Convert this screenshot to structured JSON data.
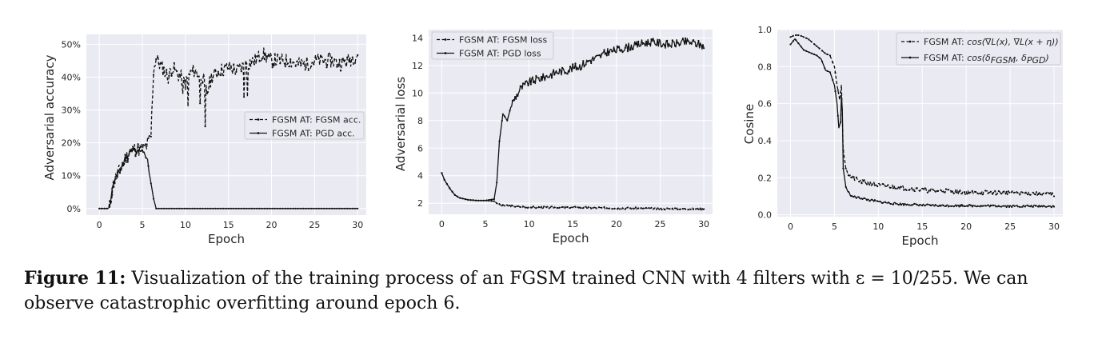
{
  "chart_data": [
    {
      "type": "line",
      "xlabel": "Epoch",
      "ylabel": "Adversarial accuracy",
      "xlim": [
        -1.5,
        31
      ],
      "ylim": [
        -0.02,
        0.53
      ],
      "xticks": [
        0,
        5,
        10,
        15,
        20,
        25,
        30
      ],
      "yticks": [
        0,
        0.1,
        0.2,
        0.3,
        0.4,
        0.5
      ],
      "ytick_labels": [
        "0%",
        "10%",
        "20%",
        "30%",
        "40%",
        "50%"
      ],
      "legend_position": "center-right",
      "series": [
        {
          "name": "FGSM AT: FGSM acc.",
          "style": "dashed",
          "keypoints": [
            [
              0,
              0
            ],
            [
              1,
              0
            ],
            [
              1.2,
              0.005
            ],
            [
              1.6,
              0.07
            ],
            [
              2,
              0.1
            ],
            [
              2.5,
              0.12
            ],
            [
              3,
              0.15
            ],
            [
              3.5,
              0.17
            ],
            [
              4,
              0.18
            ],
            [
              4.5,
              0.18
            ],
            [
              5,
              0.18
            ],
            [
              5.5,
              0.19
            ],
            [
              6,
              0.22
            ],
            [
              6.3,
              0.42
            ],
            [
              6.6,
              0.46
            ],
            [
              7,
              0.44
            ],
            [
              7.5,
              0.42
            ],
            [
              8,
              0.4
            ],
            [
              8.5,
              0.43
            ],
            [
              9,
              0.41
            ],
            [
              9.5,
              0.4
            ],
            [
              10,
              0.38
            ],
            [
              10.5,
              0.41
            ],
            [
              11,
              0.42
            ],
            [
              12,
              0.4
            ],
            [
              12.5,
              0.35
            ],
            [
              13,
              0.4
            ],
            [
              14,
              0.42
            ],
            [
              15,
              0.43
            ],
            [
              16,
              0.42
            ],
            [
              17,
              0.44
            ],
            [
              18,
              0.45
            ],
            [
              19,
              0.47
            ],
            [
              20,
              0.45
            ],
            [
              21,
              0.45
            ],
            [
              22,
              0.45
            ],
            [
              23,
              0.44
            ],
            [
              24,
              0.44
            ],
            [
              25,
              0.45
            ],
            [
              26,
              0.45
            ],
            [
              27,
              0.45
            ],
            [
              28,
              0.44
            ],
            [
              29,
              0.45
            ],
            [
              30,
              0.47
            ]
          ],
          "dips": [
            [
              9.7,
              0.35
            ],
            [
              10.3,
              0.31
            ],
            [
              11.7,
              0.32
            ],
            [
              12.3,
              0.25
            ],
            [
              16.8,
              0.34
            ],
            [
              17.2,
              0.34
            ]
          ],
          "noise": 0.022,
          "seed": 11
        },
        {
          "name": "FGSM AT: PGD acc.",
          "style": "solid",
          "keypoints": [
            [
              0,
              0
            ],
            [
              1,
              0
            ],
            [
              1.2,
              0.005
            ],
            [
              1.6,
              0.07
            ],
            [
              2,
              0.1
            ],
            [
              2.5,
              0.12
            ],
            [
              3,
              0.15
            ],
            [
              3.5,
              0.17
            ],
            [
              4,
              0.175
            ],
            [
              4.5,
              0.17
            ],
            [
              5,
              0.17
            ],
            [
              5.5,
              0.16
            ],
            [
              6,
              0.08
            ],
            [
              6.3,
              0.03
            ],
            [
              6.6,
              0
            ],
            [
              30,
              0
            ]
          ],
          "noise": 0.01,
          "noise_range": [
            1.5,
            6.0
          ],
          "seed": 5
        }
      ]
    },
    {
      "type": "line",
      "xlabel": "Epoch",
      "ylabel": "Adversarial loss",
      "xlim": [
        -1.5,
        31
      ],
      "ylim": [
        1.2,
        14.6
      ],
      "xticks": [
        0,
        5,
        10,
        15,
        20,
        25,
        30
      ],
      "yticks": [
        2,
        4,
        6,
        8,
        10,
        12,
        14
      ],
      "ytick_labels": [
        "2",
        "4",
        "6",
        "8",
        "10",
        "12",
        "14"
      ],
      "legend_position": "top-left",
      "series": [
        {
          "name": "FGSM AT: FGSM loss",
          "style": "dashed",
          "keypoints": [
            [
              0,
              4.2
            ],
            [
              0.3,
              3.7
            ],
            [
              0.7,
              3.3
            ],
            [
              1,
              3.0
            ],
            [
              1.5,
              2.6
            ],
            [
              2,
              2.4
            ],
            [
              3,
              2.25
            ],
            [
              4,
              2.2
            ],
            [
              5,
              2.2
            ],
            [
              6,
              2.15
            ],
            [
              6.5,
              1.9
            ],
            [
              7,
              1.85
            ],
            [
              10,
              1.7
            ],
            [
              15,
              1.7
            ],
            [
              20,
              1.65
            ],
            [
              25,
              1.6
            ],
            [
              30,
              1.6
            ]
          ],
          "noise": 0.07,
          "noise_range": [
            6.5,
            30
          ],
          "seed": 3
        },
        {
          "name": "FGSM AT: PGD loss",
          "style": "solid",
          "keypoints": [
            [
              0,
              4.2
            ],
            [
              0.3,
              3.7
            ],
            [
              0.7,
              3.3
            ],
            [
              1,
              3.0
            ],
            [
              1.5,
              2.6
            ],
            [
              2,
              2.4
            ],
            [
              3,
              2.25
            ],
            [
              4,
              2.2
            ],
            [
              5,
              2.2
            ],
            [
              6,
              2.3
            ],
            [
              6.3,
              3.5
            ],
            [
              6.6,
              6.5
            ],
            [
              7,
              8.5
            ],
            [
              7.5,
              8.0
            ],
            [
              8,
              9.2
            ],
            [
              9,
              10.3
            ],
            [
              10,
              10.8
            ],
            [
              11,
              11.0
            ],
            [
              12,
              11.2
            ],
            [
              13,
              11.5
            ],
            [
              14,
              11.6
            ],
            [
              15,
              11.8
            ],
            [
              16,
              12.0
            ],
            [
              17,
              12.4
            ],
            [
              18,
              12.6
            ],
            [
              19,
              13.0
            ],
            [
              20,
              13.1
            ],
            [
              21,
              13.3
            ],
            [
              22,
              13.4
            ],
            [
              23,
              13.6
            ],
            [
              24,
              13.7
            ],
            [
              25,
              13.6
            ],
            [
              26,
              13.5
            ],
            [
              27,
              13.6
            ],
            [
              28,
              13.7
            ],
            [
              29,
              13.6
            ],
            [
              30,
              13.4
            ]
          ],
          "noise": 0.3,
          "noise_range": [
            8,
            30
          ],
          "seed": 9
        }
      ]
    },
    {
      "type": "line",
      "xlabel": "Epoch",
      "ylabel": "Cosine",
      "xlim": [
        -1.5,
        31
      ],
      "ylim": [
        -0.01,
        1.0
      ],
      "xticks": [
        0,
        5,
        10,
        15,
        20,
        25,
        30
      ],
      "yticks": [
        0,
        0.2,
        0.4,
        0.6,
        0.8,
        1.0
      ],
      "ytick_labels": [
        "0.0",
        "0.2",
        "0.4",
        "0.6",
        "0.8",
        "1.0"
      ],
      "legend_position": "top-right",
      "series": [
        {
          "name": "FGSM AT: cos(∇L(x), ∇L(x + η))",
          "name_prefix": "FGSM AT: ",
          "name_math": "cos(∇L(x), ∇L(x + η))",
          "style": "dashed",
          "keypoints": [
            [
              0,
              0.96
            ],
            [
              0.5,
              0.97
            ],
            [
              1,
              0.97
            ],
            [
              1.5,
              0.96
            ],
            [
              2,
              0.95
            ],
            [
              2.5,
              0.93
            ],
            [
              3,
              0.91
            ],
            [
              3.5,
              0.89
            ],
            [
              4,
              0.87
            ],
            [
              4.5,
              0.86
            ],
            [
              5,
              0.8
            ],
            [
              5.3,
              0.7
            ],
            [
              5.6,
              0.62
            ],
            [
              5.8,
              0.7
            ],
            [
              6,
              0.35
            ],
            [
              6.3,
              0.25
            ],
            [
              6.6,
              0.22
            ],
            [
              7,
              0.2
            ],
            [
              8,
              0.18
            ],
            [
              9,
              0.17
            ],
            [
              10,
              0.16
            ],
            [
              12,
              0.15
            ],
            [
              14,
              0.14
            ],
            [
              16,
              0.13
            ],
            [
              18,
              0.13
            ],
            [
              20,
              0.12
            ],
            [
              22,
              0.12
            ],
            [
              24,
              0.12
            ],
            [
              26,
              0.12
            ],
            [
              28,
              0.115
            ],
            [
              30,
              0.11
            ]
          ],
          "noise": 0.012,
          "noise_range": [
            6.5,
            30
          ],
          "seed": 21
        },
        {
          "name": "FGSM AT: cos(δ_FGSM, δ_PGD)",
          "name_prefix": "FGSM AT: ",
          "name_math": "cos(δ",
          "sub1": "FGSM",
          "name_mid": ", δ",
          "sub2": "PGD",
          "name_end": ")",
          "style": "solid",
          "keypoints": [
            [
              0,
              0.92
            ],
            [
              0.5,
              0.95
            ],
            [
              1,
              0.92
            ],
            [
              1.5,
              0.89
            ],
            [
              2,
              0.88
            ],
            [
              2.5,
              0.87
            ],
            [
              3,
              0.86
            ],
            [
              3.5,
              0.84
            ],
            [
              4,
              0.78
            ],
            [
              4.5,
              0.77
            ],
            [
              5,
              0.7
            ],
            [
              5.3,
              0.6
            ],
            [
              5.5,
              0.47
            ],
            [
              5.7,
              0.5
            ],
            [
              5.85,
              0.72
            ],
            [
              6,
              0.25
            ],
            [
              6.3,
              0.15
            ],
            [
              6.6,
              0.12
            ],
            [
              7,
              0.1
            ],
            [
              8,
              0.09
            ],
            [
              9,
              0.08
            ],
            [
              10,
              0.07
            ],
            [
              12,
              0.06
            ],
            [
              14,
              0.055
            ],
            [
              16,
              0.05
            ],
            [
              18,
              0.05
            ],
            [
              20,
              0.05
            ],
            [
              22,
              0.048
            ],
            [
              24,
              0.048
            ],
            [
              26,
              0.047
            ],
            [
              28,
              0.047
            ],
            [
              30,
              0.047
            ]
          ],
          "noise": 0.006,
          "noise_range": [
            6.5,
            30
          ],
          "seed": 33
        }
      ]
    }
  ],
  "caption": {
    "label": "Figure 11:",
    "text": " Visualization of the training process of an FGSM trained CNN with 4 filters with ε = 10/255. We can observe catastrophic overfitting around epoch 6."
  }
}
